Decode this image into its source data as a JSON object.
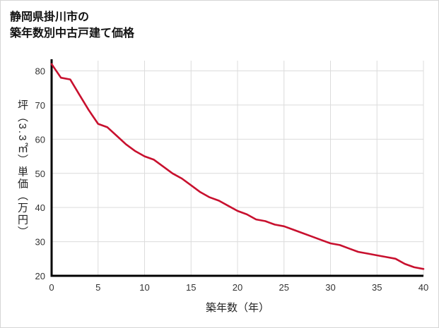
{
  "header": {
    "title_line1": "静岡県掛川市の",
    "title_line2": "築年数別中古戸建て価格"
  },
  "chart_data": {
    "type": "line",
    "title": "静岡県掛川市の築年数別中古戸建て価格",
    "xlabel": "築年数（年）",
    "ylabel": "坪（3.3㎡）単価（万円）",
    "x": [
      0,
      1,
      2,
      3,
      4,
      5,
      6,
      7,
      8,
      9,
      10,
      11,
      12,
      13,
      14,
      15,
      16,
      17,
      18,
      19,
      20,
      21,
      22,
      23,
      24,
      25,
      26,
      27,
      28,
      29,
      30,
      31,
      32,
      33,
      34,
      35,
      36,
      37,
      38,
      39,
      40
    ],
    "values": [
      82,
      78,
      77.5,
      73,
      68.5,
      64.5,
      63.5,
      61,
      58.5,
      56.5,
      55,
      54,
      52,
      50,
      48.5,
      46.5,
      44.5,
      43,
      42,
      40.5,
      39,
      38,
      36.5,
      36,
      35,
      34.5,
      33.5,
      32.5,
      31.5,
      30.5,
      29.5,
      29,
      28,
      27,
      26.5,
      26,
      25.5,
      25,
      23.5,
      22.5,
      22
    ],
    "xlim": [
      0,
      40
    ],
    "ylim": [
      20,
      83
    ],
    "xticks": [
      0,
      5,
      10,
      15,
      20,
      25,
      30,
      35,
      40
    ],
    "yticks": [
      20,
      30,
      40,
      50,
      60,
      70,
      80
    ],
    "grid": true,
    "legend_position": "none",
    "line_color": "#c8102e",
    "axis_color": "#000000",
    "grid_color": "#dcdcdc",
    "tick_color": "#333333"
  }
}
